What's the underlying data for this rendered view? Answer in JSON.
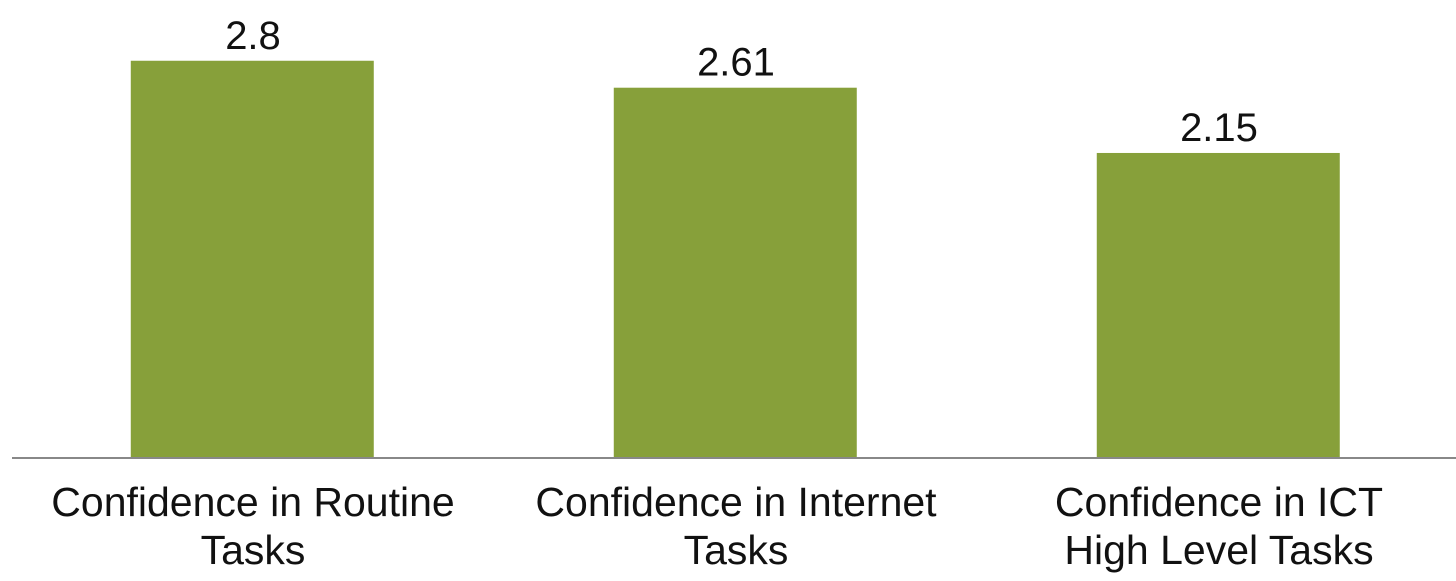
{
  "chart_data": {
    "type": "bar",
    "categories": [
      "Confidence in Routine\nTasks",
      "Confidence in Internet\nTasks",
      "Confidence in ICT\nHigh Level Tasks"
    ],
    "values": [
      2.8,
      2.61,
      2.15
    ],
    "color": "#87a03a",
    "ylim": [
      0,
      3.2
    ]
  }
}
